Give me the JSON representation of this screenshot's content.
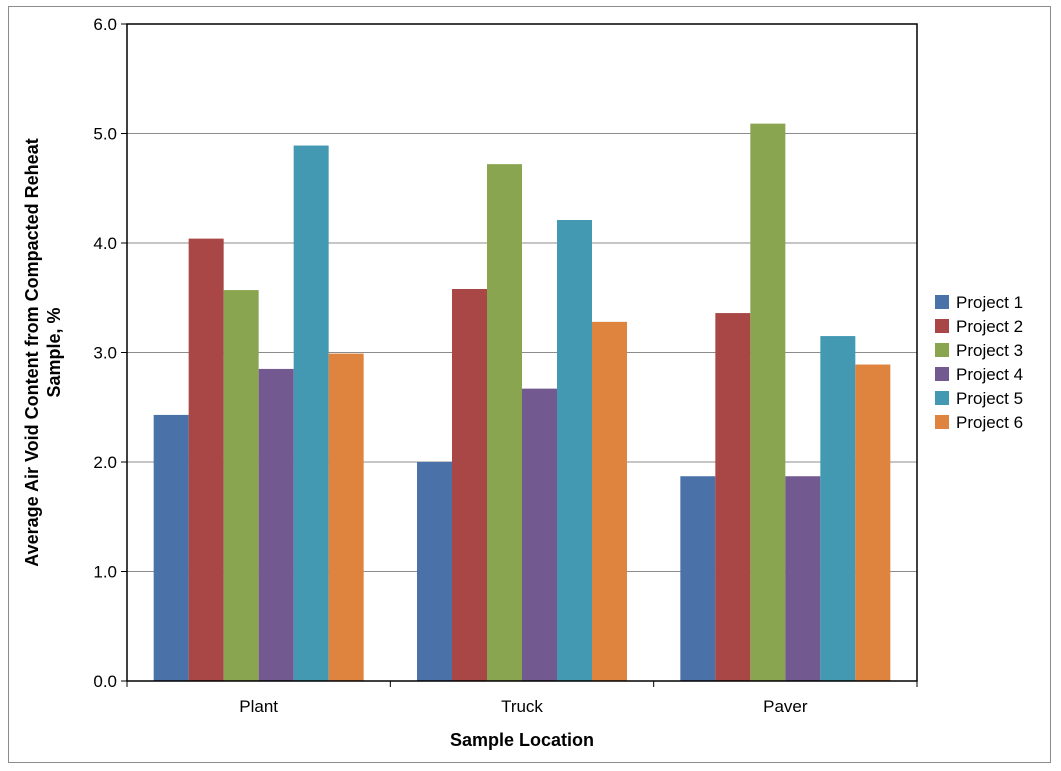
{
  "chart_data": {
    "type": "bar",
    "categories": [
      "Plant",
      "Truck",
      "Paver"
    ],
    "series": [
      {
        "name": "Project 1",
        "color": "#4a72a8",
        "values": [
          2.43,
          2.0,
          1.87
        ]
      },
      {
        "name": "Project 2",
        "color": "#a84745",
        "values": [
          4.04,
          3.58,
          3.36
        ]
      },
      {
        "name": "Project 3",
        "color": "#8aa54f",
        "values": [
          3.57,
          4.72,
          5.09
        ]
      },
      {
        "name": "Project 4",
        "color": "#725990",
        "values": [
          2.85,
          2.67,
          1.87
        ]
      },
      {
        "name": "Project 5",
        "color": "#4399b2",
        "values": [
          4.89,
          4.21,
          3.15
        ]
      },
      {
        "name": "Project 6",
        "color": "#de843f",
        "values": [
          2.99,
          3.28,
          2.89
        ]
      }
    ],
    "xlabel": "Sample Location",
    "ylabel": "Average Air Void Content from Compacted Reheat Sample, %",
    "ylim": [
      0,
      6
    ],
    "yticks": [
      "0.0",
      "1.0",
      "2.0",
      "3.0",
      "4.0",
      "5.0",
      "6.0"
    ],
    "grid": true,
    "legend": "right"
  }
}
